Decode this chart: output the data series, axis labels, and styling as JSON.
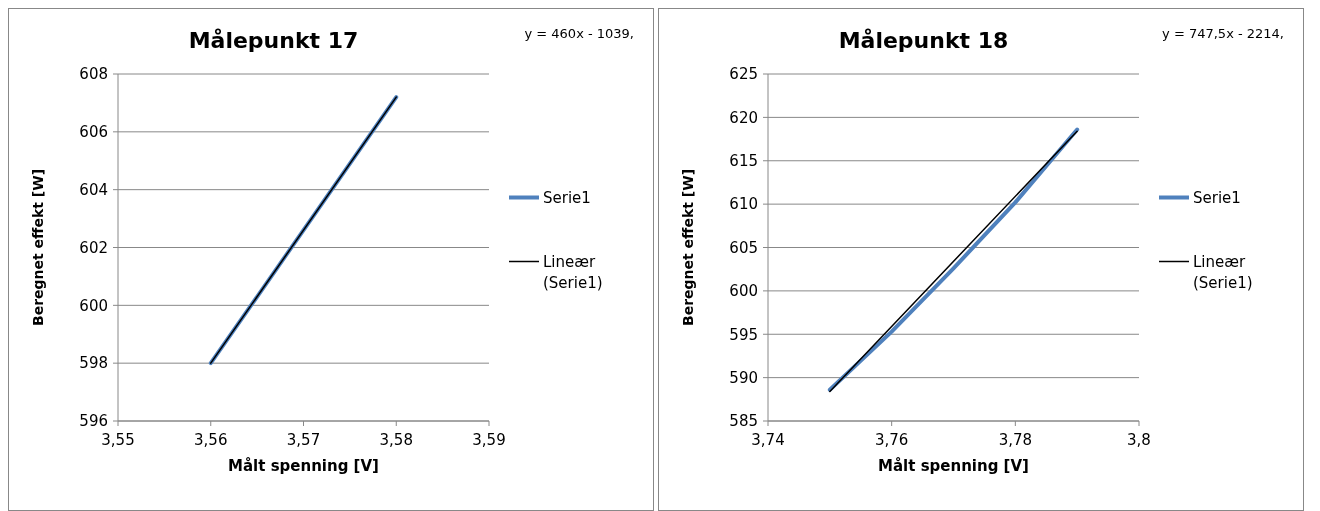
{
  "chart_data": [
    {
      "type": "line",
      "title": "Målepunkt 17",
      "xlabel": "Målt spenning [V]",
      "ylabel": "Beregnet effekt [W]",
      "annotations": [
        "y = 460x - 1039,"
      ],
      "xlim": [
        3.55,
        3.59
      ],
      "xticks": [
        {
          "value": 3.55,
          "label": "3,55"
        },
        {
          "value": 3.56,
          "label": "3,56"
        },
        {
          "value": 3.57,
          "label": "3,57"
        },
        {
          "value": 3.58,
          "label": "3,58"
        },
        {
          "value": 3.59,
          "label": "3,59"
        }
      ],
      "ylim": [
        596,
        608
      ],
      "yticks": [
        596,
        598,
        600,
        602,
        604,
        606,
        608
      ],
      "grid": "y",
      "legend": "right",
      "series": [
        {
          "name": "Serie1",
          "color": "#4f81bd",
          "x": [
            3.56,
            3.58
          ],
          "values": [
            598,
            607.2
          ]
        },
        {
          "name": "Lineær (Serie1)",
          "color": "#000000",
          "x": [
            3.56,
            3.58
          ],
          "values": [
            598,
            607.2
          ]
        }
      ]
    },
    {
      "type": "line",
      "title": "Målepunkt 18",
      "xlabel": "Målt spenning [V]",
      "ylabel": "Beregnet effekt [W]",
      "annotations": [
        "y = 747,5x - 2214,"
      ],
      "xlim": [
        3.74,
        3.8
      ],
      "xticks": [
        {
          "value": 3.74,
          "label": "3,74"
        },
        {
          "value": 3.76,
          "label": "3,76"
        },
        {
          "value": 3.78,
          "label": "3,78"
        },
        {
          "value": 3.8,
          "label": "3,8"
        }
      ],
      "ylim": [
        585,
        625
      ],
      "yticks": [
        585,
        590,
        595,
        600,
        605,
        610,
        615,
        620,
        625
      ],
      "grid": "y",
      "legend": "right",
      "series": [
        {
          "name": "Serie1",
          "color": "#4f81bd",
          "x": [
            3.75,
            3.76,
            3.77,
            3.78,
            3.79
          ],
          "values": [
            588.6,
            595.3,
            602.6,
            610.2,
            618.6
          ]
        },
        {
          "name": "Lineær (Serie1)",
          "color": "#000000",
          "x": [
            3.75,
            3.79
          ],
          "values": [
            588.4,
            618.4
          ]
        }
      ]
    }
  ]
}
